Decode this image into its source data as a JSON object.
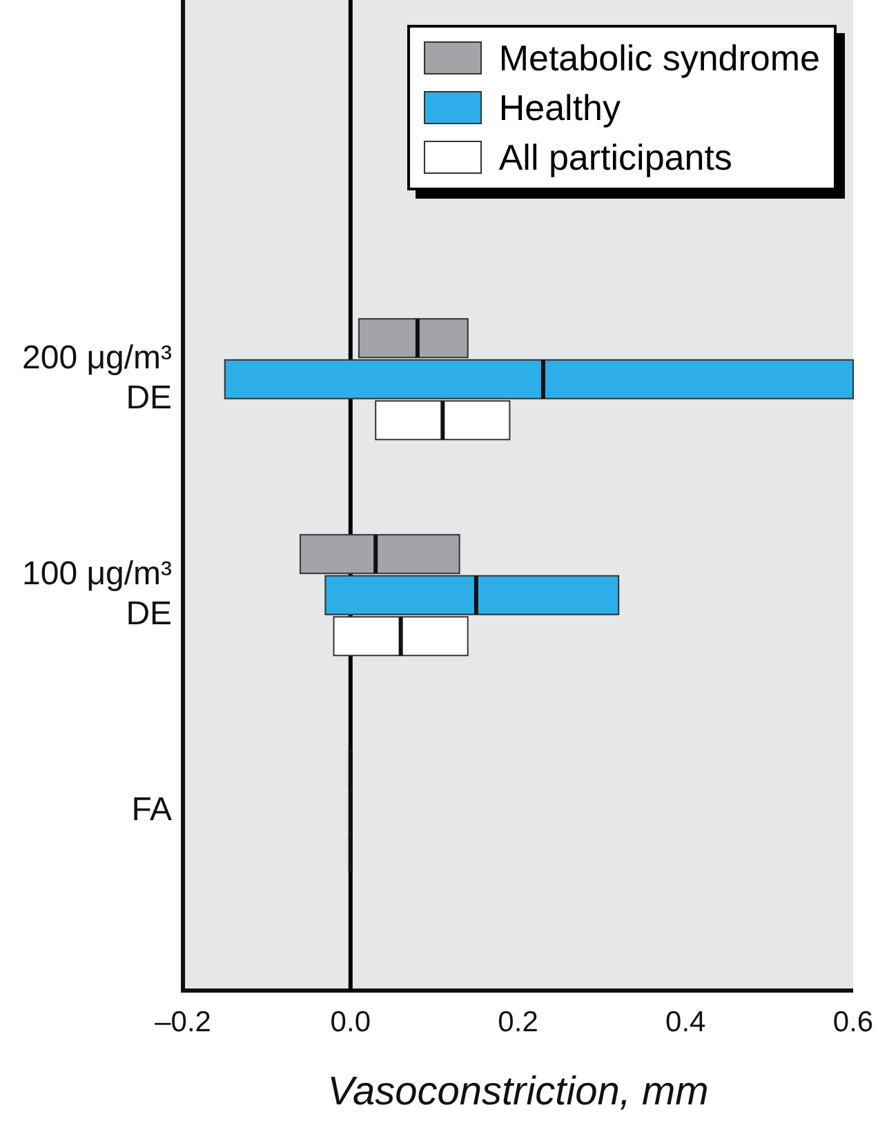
{
  "chart_data": {
    "type": "box",
    "orientation": "horizontal",
    "xlabel": "Vasoconstriction, mm",
    "categories": [
      "200 μg/m³ DE",
      "100 μg/m³ DE",
      "FA"
    ],
    "series": [
      {
        "name": "Metabolic syndrome",
        "color": "#a3a4a8",
        "boxes": [
          {
            "low": 0.01,
            "q1": 0.01,
            "median": 0.08,
            "q3": 0.14,
            "high": 0.14
          },
          {
            "low": -0.06,
            "q1": -0.06,
            "median": 0.03,
            "q3": 0.13,
            "high": 0.13
          },
          {
            "low": 0,
            "q1": 0,
            "median": 0,
            "q3": 0,
            "high": 0
          }
        ]
      },
      {
        "name": "Healthy",
        "color": "#2eaee8",
        "boxes": [
          {
            "low": -0.15,
            "q1": -0.15,
            "median": 0.23,
            "q3": 0.6,
            "high": 0.6
          },
          {
            "low": -0.03,
            "q1": -0.03,
            "median": 0.15,
            "q3": 0.32,
            "high": 0.32
          },
          {
            "low": 0,
            "q1": 0,
            "median": 0,
            "q3": 0,
            "high": 0
          }
        ]
      },
      {
        "name": "All participants",
        "color": "#ffffff",
        "boxes": [
          {
            "low": 0.03,
            "q1": 0.03,
            "median": 0.11,
            "q3": 0.19,
            "high": 0.19
          },
          {
            "low": -0.02,
            "q1": -0.02,
            "median": 0.06,
            "q3": 0.14,
            "high": 0.14
          },
          {
            "low": 0,
            "q1": 0,
            "median": 0,
            "q3": 0,
            "high": 0
          }
        ]
      }
    ],
    "xlim": [
      -0.2,
      0.6
    ],
    "xticks": [
      {
        "value": -0.2,
        "label": "–0.2"
      },
      {
        "value": 0,
        "label": "0.0"
      },
      {
        "value": 0.2,
        "label": "0.2"
      },
      {
        "value": 0.4,
        "label": "0.4"
      },
      {
        "value": 0.6,
        "label": "0.6"
      }
    ],
    "ref_lines": [
      {
        "axis": "x",
        "value": 0,
        "color": "#000000"
      }
    ],
    "legend": "top right",
    "grid": false
  }
}
